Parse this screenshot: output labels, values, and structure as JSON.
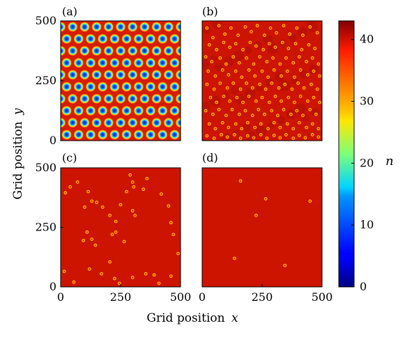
{
  "chart_data": {
    "type": "heatmap",
    "xlabel_text": "Grid position",
    "xlabel_var": "x",
    "ylabel_text": "Grid position",
    "ylabel_var": "y",
    "xlim": [
      0,
      500
    ],
    "ylim": [
      0,
      500
    ],
    "x_ticks": [
      "0",
      "250",
      "500"
    ],
    "y_ticks": [
      "0",
      "250",
      "500"
    ],
    "x_tick_values": [
      0,
      250,
      500
    ],
    "y_tick_values": [
      0,
      250,
      500
    ],
    "colorbar": {
      "label": "n",
      "range": [
        0,
        43
      ],
      "ticks": [
        "0",
        "10",
        "20",
        "30",
        "40"
      ],
      "tick_values": [
        0,
        10,
        20,
        30,
        40
      ],
      "colormap": "jet"
    },
    "panels": [
      {
        "label": "(a)",
        "pattern": "regular hexagonal lattice of low-density holes",
        "background_value": 43,
        "hole_value": 0,
        "holes_per_row": 10,
        "rows": 10
      },
      {
        "label": "(b)",
        "pattern": "disordered dense field of small holes",
        "background_value": 40,
        "hole_value": 25,
        "hole_positions": [
          [
            20,
            470
          ],
          [
            45,
            430
          ],
          [
            70,
            480
          ],
          [
            95,
            445
          ],
          [
            120,
            470
          ],
          [
            150,
            440
          ],
          [
            180,
            475
          ],
          [
            205,
            455
          ],
          [
            230,
            480
          ],
          [
            260,
            440
          ],
          [
            285,
            470
          ],
          [
            310,
            450
          ],
          [
            340,
            480
          ],
          [
            365,
            445
          ],
          [
            395,
            470
          ],
          [
            420,
            440
          ],
          [
            450,
            475
          ],
          [
            480,
            450
          ],
          [
            30,
            400
          ],
          [
            60,
            380
          ],
          [
            90,
            410
          ],
          [
            115,
            390
          ],
          [
            140,
            405
          ],
          [
            170,
            380
          ],
          [
            200,
            410
          ],
          [
            225,
            395
          ],
          [
            255,
            380
          ],
          [
            280,
            405
          ],
          [
            305,
            390
          ],
          [
            335,
            410
          ],
          [
            360,
            385
          ],
          [
            390,
            405
          ],
          [
            415,
            380
          ],
          [
            445,
            400
          ],
          [
            470,
            385
          ],
          [
            15,
            350
          ],
          [
            40,
            330
          ],
          [
            75,
            345
          ],
          [
            100,
            320
          ],
          [
            130,
            350
          ],
          [
            155,
            325
          ],
          [
            185,
            345
          ],
          [
            215,
            320
          ],
          [
            240,
            350
          ],
          [
            270,
            330
          ],
          [
            295,
            345
          ],
          [
            325,
            320
          ],
          [
            350,
            345
          ],
          [
            380,
            325
          ],
          [
            405,
            350
          ],
          [
            435,
            330
          ],
          [
            460,
            345
          ],
          [
            485,
            320
          ],
          [
            25,
            290
          ],
          [
            55,
            270
          ],
          [
            85,
            295
          ],
          [
            110,
            275
          ],
          [
            140,
            290
          ],
          [
            165,
            265
          ],
          [
            195,
            295
          ],
          [
            220,
            270
          ],
          [
            250,
            290
          ],
          [
            275,
            265
          ],
          [
            300,
            295
          ],
          [
            330,
            270
          ],
          [
            355,
            290
          ],
          [
            385,
            265
          ],
          [
            410,
            295
          ],
          [
            440,
            275
          ],
          [
            465,
            290
          ],
          [
            490,
            270
          ],
          [
            20,
            235
          ],
          [
            50,
            215
          ],
          [
            75,
            240
          ],
          [
            105,
            220
          ],
          [
            130,
            240
          ],
          [
            160,
            215
          ],
          [
            185,
            240
          ],
          [
            210,
            220
          ],
          [
            240,
            235
          ],
          [
            265,
            215
          ],
          [
            290,
            240
          ],
          [
            320,
            220
          ],
          [
            345,
            235
          ],
          [
            375,
            215
          ],
          [
            400,
            240
          ],
          [
            425,
            220
          ],
          [
            455,
            235
          ],
          [
            480,
            215
          ],
          [
            35,
            180
          ],
          [
            60,
            160
          ],
          [
            90,
            185
          ],
          [
            115,
            165
          ],
          [
            145,
            180
          ],
          [
            170,
            160
          ],
          [
            195,
            185
          ],
          [
            225,
            165
          ],
          [
            250,
            180
          ],
          [
            280,
            160
          ],
          [
            305,
            185
          ],
          [
            330,
            165
          ],
          [
            360,
            180
          ],
          [
            385,
            160
          ],
          [
            410,
            185
          ],
          [
            440,
            165
          ],
          [
            465,
            180
          ],
          [
            490,
            160
          ],
          [
            15,
            125
          ],
          [
            45,
            110
          ],
          [
            70,
            130
          ],
          [
            100,
            105
          ],
          [
            125,
            130
          ],
          [
            155,
            110
          ],
          [
            180,
            125
          ],
          [
            210,
            105
          ],
          [
            235,
            130
          ],
          [
            260,
            110
          ],
          [
            290,
            125
          ],
          [
            315,
            105
          ],
          [
            340,
            130
          ],
          [
            370,
            110
          ],
          [
            395,
            125
          ],
          [
            420,
            105
          ],
          [
            450,
            130
          ],
          [
            475,
            110
          ],
          [
            30,
            70
          ],
          [
            55,
            50
          ],
          [
            85,
            75
          ],
          [
            110,
            55
          ],
          [
            140,
            70
          ],
          [
            165,
            50
          ],
          [
            190,
            75
          ],
          [
            220,
            55
          ],
          [
            245,
            70
          ],
          [
            275,
            50
          ],
          [
            300,
            75
          ],
          [
            325,
            55
          ],
          [
            355,
            70
          ],
          [
            380,
            50
          ],
          [
            405,
            75
          ],
          [
            435,
            55
          ],
          [
            460,
            70
          ],
          [
            485,
            50
          ],
          [
            20,
            20
          ],
          [
            50,
            10
          ],
          [
            80,
            25
          ],
          [
            105,
            15
          ],
          [
            135,
            25
          ],
          [
            160,
            10
          ],
          [
            190,
            20
          ],
          [
            215,
            12
          ],
          [
            245,
            25
          ],
          [
            270,
            10
          ],
          [
            300,
            22
          ],
          [
            325,
            12
          ],
          [
            350,
            25
          ],
          [
            380,
            10
          ],
          [
            405,
            22
          ],
          [
            430,
            12
          ],
          [
            460,
            25
          ],
          [
            485,
            15
          ]
        ]
      },
      {
        "label": "(c)",
        "pattern": "sparse isolated holes",
        "background_value": 40,
        "hole_value": 25,
        "hole_positions": [
          [
            20,
            395
          ],
          [
            40,
            420
          ],
          [
            70,
            440
          ],
          [
            115,
            400
          ],
          [
            130,
            360
          ],
          [
            150,
            355
          ],
          [
            100,
            335
          ],
          [
            175,
            335
          ],
          [
            205,
            300
          ],
          [
            230,
            275
          ],
          [
            290,
            470
          ],
          [
            300,
            440
          ],
          [
            275,
            400
          ],
          [
            305,
            420
          ],
          [
            360,
            455
          ],
          [
            345,
            410
          ],
          [
            420,
            390
          ],
          [
            450,
            340
          ],
          [
            460,
            270
          ],
          [
            470,
            220
          ],
          [
            490,
            140
          ],
          [
            110,
            230
          ],
          [
            130,
            200
          ],
          [
            95,
            195
          ],
          [
            145,
            175
          ],
          [
            215,
            220
          ],
          [
            230,
            230
          ],
          [
            265,
            190
          ],
          [
            205,
            105
          ],
          [
            170,
            55
          ],
          [
            120,
            75
          ],
          [
            55,
            20
          ],
          [
            15,
            65
          ],
          [
            225,
            35
          ],
          [
            245,
            15
          ],
          [
            300,
            40
          ],
          [
            355,
            55
          ],
          [
            390,
            50
          ],
          [
            410,
            15
          ],
          [
            460,
            45
          ],
          [
            300,
            320
          ],
          [
            310,
            300
          ],
          [
            250,
            345
          ]
        ]
      },
      {
        "label": "(d)",
        "pattern": "very few isolated holes",
        "background_value": 40,
        "hole_value": 25,
        "hole_positions": [
          [
            160,
            445
          ],
          [
            265,
            370
          ],
          [
            225,
            300
          ],
          [
            450,
            360
          ],
          [
            135,
            120
          ],
          [
            345,
            90
          ]
        ]
      }
    ]
  }
}
